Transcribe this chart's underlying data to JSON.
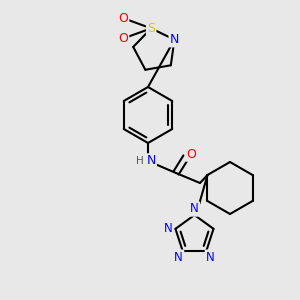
{
  "bg_color": "#e8e8e8",
  "line_color": "#000000",
  "bond_width": 1.5,
  "atom_colors": {
    "N": "#0000ff",
    "O": "#ff0000",
    "S": "#cccc00",
    "C": "#000000",
    "H": "#555555"
  }
}
